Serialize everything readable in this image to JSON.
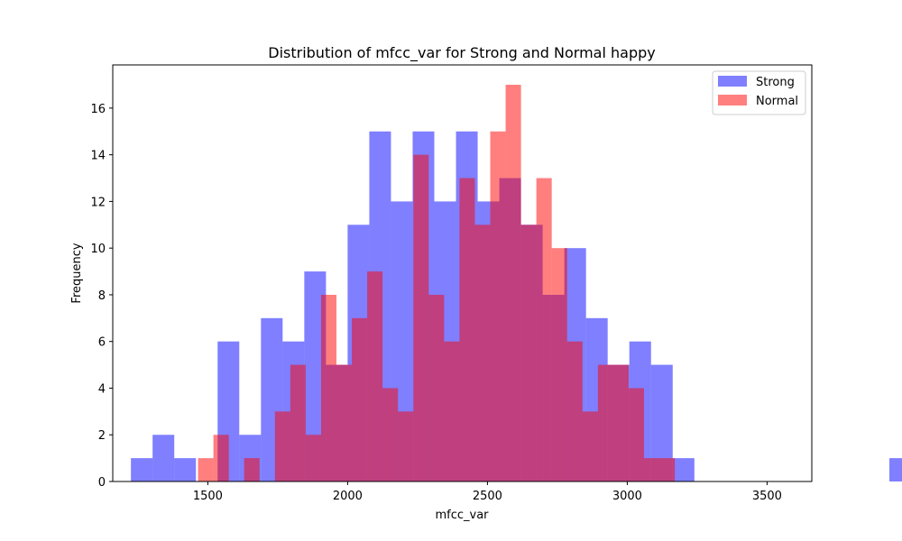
{
  "chart_data": {
    "type": "bar",
    "title": "Distribution of mfcc_var for Strong and Normal happy",
    "xlabel": "mfcc_var",
    "ylabel": "Frequency",
    "xlim": [
      1160,
      3660
    ],
    "ylim": [
      0,
      17.85
    ],
    "xticks": [
      1500,
      2000,
      2500,
      3000,
      3500
    ],
    "yticks": [
      0,
      2,
      4,
      6,
      8,
      10,
      12,
      14,
      16
    ],
    "legend_position": "top-right",
    "grid": false,
    "series": [
      {
        "name": "Strong",
        "color": "#0000ff",
        "bin_start": 1225,
        "bin_width": 77.5,
        "counts": [
          1,
          2,
          1,
          0,
          6,
          2,
          7,
          6,
          9,
          5,
          11,
          15,
          12,
          15,
          12,
          15,
          12,
          13,
          11,
          8,
          10,
          7,
          5,
          6,
          5,
          1,
          0,
          0,
          0,
          0,
          0,
          0,
          0,
          0,
          0,
          1
        ]
      },
      {
        "name": "Normal",
        "color": "#ff0000",
        "bin_start": 1465,
        "bin_width": 55,
        "counts": [
          1,
          2,
          0,
          1,
          0,
          3,
          5,
          2,
          8,
          5,
          7,
          9,
          4,
          3,
          14,
          8,
          6,
          13,
          11,
          15,
          17,
          11,
          13,
          10,
          6,
          3,
          5,
          5,
          4,
          1,
          1
        ]
      }
    ]
  }
}
